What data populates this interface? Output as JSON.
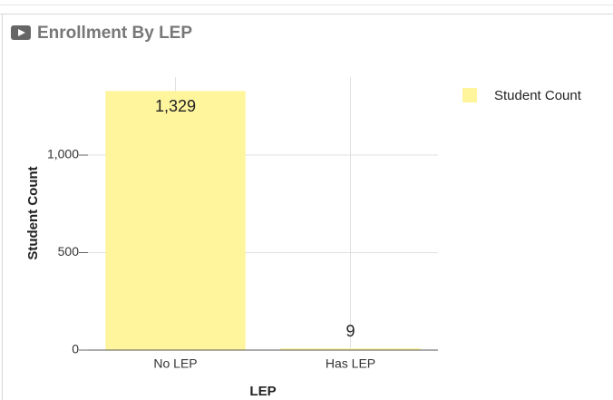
{
  "chart_data": {
    "type": "bar",
    "title": "Enrollment By LEP",
    "categories": [
      "No LEP",
      "Has LEP"
    ],
    "values": [
      1329,
      9
    ],
    "value_labels": [
      "1,329",
      "9"
    ],
    "series_name": "Student Count",
    "color": "#fff59d",
    "x_label": "LEP",
    "y_label": "Student Count",
    "ylim": [
      0,
      1400
    ],
    "yticks": [
      0,
      500,
      {
        "value": 1000,
        "label": "1,000"
      }
    ],
    "grid": true,
    "legend": "right"
  }
}
